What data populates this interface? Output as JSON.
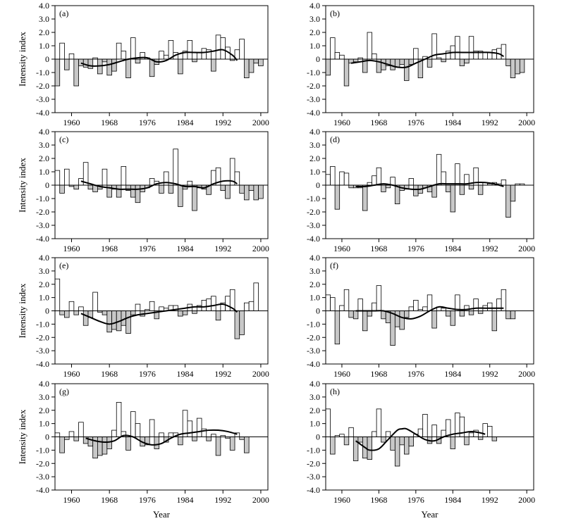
{
  "figure": {
    "xlabel": "Year",
    "ylabel": "Intensity index"
  },
  "colors": {
    "positive_bar": "#ffffff",
    "negative_bar": "#c8c8c8",
    "stroke": "#000000",
    "trend": "#000000"
  },
  "chart_data": [
    {
      "type": "bar",
      "panel_label": "(a)",
      "xlabel": "",
      "ylabel": "Intensity index",
      "x": [
        1957,
        1958,
        1959,
        1960,
        1961,
        1962,
        1963,
        1964,
        1965,
        1966,
        1967,
        1968,
        1969,
        1970,
        1971,
        1972,
        1973,
        1974,
        1975,
        1976,
        1977,
        1978,
        1979,
        1980,
        1981,
        1982,
        1983,
        1984,
        1985,
        1986,
        1987,
        1988,
        1989,
        1990,
        1991,
        1992,
        1993,
        1994,
        1995,
        1996,
        1997,
        1998,
        1999,
        2000,
        2001
      ],
      "values": [
        -2.0,
        1.2,
        -0.8,
        0.4,
        -2.0,
        -0.5,
        -0.6,
        -0.7,
        0.1,
        -1.1,
        -0.2,
        -1.2,
        -0.9,
        1.2,
        0.6,
        -1.4,
        1.6,
        -0.3,
        0.5,
        0.1,
        -1.3,
        -0.4,
        0.6,
        0.3,
        1.4,
        0.5,
        -1.1,
        0.6,
        1.4,
        -0.2,
        0.5,
        0.8,
        0.7,
        -0.9,
        1.8,
        1.6,
        0.9,
        -0.1,
        0.7,
        1.5,
        -1.4,
        -1.0,
        -0.3,
        -0.5,
        0
      ],
      "trend_x": [
        1962,
        1964,
        1966,
        1968,
        1970,
        1972,
        1974,
        1976,
        1978,
        1980,
        1982,
        1984,
        1986,
        1988,
        1990,
        1992,
        1994,
        1995
      ],
      "trend_y": [
        -0.3,
        -0.5,
        -0.5,
        -0.4,
        -0.2,
        0.0,
        0.1,
        0.1,
        -0.2,
        -0.1,
        0.3,
        0.5,
        0.5,
        0.5,
        0.6,
        0.7,
        0.3,
        -0.1
      ],
      "ylim": [
        -4.0,
        4.0
      ],
      "xlim": [
        1956.5,
        2001.5
      ],
      "yticks": [
        "4.0",
        "3.0",
        "2.0",
        "1.0",
        "0",
        "-1.0",
        "-2.0",
        "-3.0",
        "-4.0"
      ],
      "xticks": [
        "1960",
        "1968",
        "1976",
        "1984",
        "1992",
        "2000"
      ]
    },
    {
      "type": "bar",
      "panel_label": "(b)",
      "xlabel": "",
      "ylabel": "",
      "x": [
        1957,
        1958,
        1959,
        1960,
        1961,
        1962,
        1963,
        1964,
        1965,
        1966,
        1967,
        1968,
        1969,
        1970,
        1971,
        1972,
        1973,
        1974,
        1975,
        1976,
        1977,
        1978,
        1979,
        1980,
        1981,
        1982,
        1983,
        1984,
        1985,
        1986,
        1987,
        1988,
        1989,
        1990,
        1991,
        1992,
        1993,
        1994,
        1995,
        1996,
        1997,
        1998,
        1999,
        2000,
        2001
      ],
      "values": [
        -1.2,
        1.6,
        0.5,
        0.3,
        -2.0,
        -0.3,
        -0.2,
        0.1,
        -1.0,
        2.0,
        0.4,
        -1.0,
        -0.8,
        -0.5,
        -0.8,
        -0.6,
        -0.4,
        -1.6,
        -0.4,
        0.8,
        -1.4,
        0.2,
        -0.6,
        1.9,
        0.1,
        -0.2,
        0.6,
        1.0,
        1.7,
        -0.5,
        -0.3,
        1.7,
        0.6,
        0.6,
        0.5,
        0.5,
        0.7,
        0.8,
        1.1,
        -0.5,
        -1.4,
        -1.1,
        -1.0,
        0,
        0
      ],
      "trend_x": [
        1962,
        1964,
        1966,
        1968,
        1970,
        1972,
        1974,
        1976,
        1978,
        1980,
        1982,
        1984,
        1986,
        1988,
        1990,
        1992,
        1994,
        1995
      ],
      "trend_y": [
        -0.3,
        -0.2,
        -0.1,
        -0.2,
        -0.4,
        -0.6,
        -0.6,
        -0.3,
        0.0,
        0.3,
        0.4,
        0.5,
        0.5,
        0.5,
        0.5,
        0.5,
        0.4,
        0.2
      ],
      "ylim": [
        -4.0,
        4.0
      ],
      "xlim": [
        1956.5,
        2001.5
      ],
      "yticks": [
        "4.0",
        "3.0",
        "2.0",
        "1.0",
        "0",
        "-1.0",
        "-2.0",
        "-3.0",
        "-4.0"
      ],
      "xticks": [
        "1960",
        "1968",
        "1976",
        "1984",
        "1992",
        "2000"
      ]
    },
    {
      "type": "bar",
      "panel_label": "(c)",
      "xlabel": "",
      "ylabel": "Intensity index",
      "x": [
        1957,
        1958,
        1959,
        1960,
        1961,
        1962,
        1963,
        1964,
        1965,
        1966,
        1967,
        1968,
        1969,
        1970,
        1971,
        1972,
        1973,
        1974,
        1975,
        1976,
        1977,
        1978,
        1979,
        1980,
        1981,
        1982,
        1983,
        1984,
        1985,
        1986,
        1987,
        1988,
        1989,
        1990,
        1991,
        1992,
        1993,
        1994,
        1995,
        1996,
        1997,
        1998,
        1999,
        2000,
        2001
      ],
      "values": [
        1.1,
        -0.6,
        1.2,
        -0.1,
        -0.3,
        0.5,
        1.7,
        -0.3,
        -0.5,
        -0.3,
        1.2,
        -0.9,
        -0.3,
        -0.9,
        1.4,
        -0.4,
        -0.9,
        -1.3,
        -0.5,
        -0.2,
        0.5,
        0.3,
        -0.6,
        1.0,
        -0.6,
        2.7,
        -1.6,
        -0.3,
        0.3,
        -1.9,
        -0.2,
        -0.3,
        -0.7,
        1.1,
        1.3,
        -0.4,
        -1.0,
        2.0,
        1.0,
        -0.6,
        -1.1,
        -0.4,
        -1.1,
        -1.0,
        0
      ],
      "trend_x": [
        1962,
        1964,
        1966,
        1968,
        1970,
        1972,
        1974,
        1976,
        1978,
        1980,
        1982,
        1984,
        1986,
        1988,
        1990,
        1992,
        1994,
        1995
      ],
      "trend_y": [
        0.3,
        0.1,
        -0.1,
        -0.2,
        -0.3,
        -0.3,
        -0.3,
        -0.2,
        0.1,
        0.2,
        0.1,
        -0.1,
        -0.1,
        -0.2,
        0.1,
        0.3,
        0.3,
        0.1
      ],
      "ylim": [
        -4.0,
        4.0
      ],
      "xlim": [
        1956.5,
        2001.5
      ],
      "yticks": [
        "4.0",
        "3.0",
        "2.0",
        "1.0",
        "0",
        "-1.0",
        "-2.0",
        "-3.0",
        "-4.0"
      ],
      "xticks": [
        "1960",
        "1968",
        "1976",
        "1984",
        "1992",
        "2000"
      ]
    },
    {
      "type": "bar",
      "panel_label": "(d)",
      "xlabel": "",
      "ylabel": "",
      "x": [
        1957,
        1958,
        1959,
        1960,
        1961,
        1962,
        1963,
        1964,
        1965,
        1966,
        1967,
        1968,
        1969,
        1970,
        1971,
        1972,
        1973,
        1974,
        1975,
        1976,
        1977,
        1978,
        1979,
        1980,
        1981,
        1982,
        1983,
        1984,
        1985,
        1986,
        1987,
        1988,
        1989,
        1990,
        1991,
        1992,
        1993,
        1994,
        1995,
        1996,
        1997,
        1998,
        1999,
        2000,
        2001
      ],
      "values": [
        0.8,
        1.4,
        -1.8,
        1.0,
        0.9,
        -0.2,
        -0.2,
        -0.2,
        -1.9,
        0.2,
        0.7,
        1.3,
        -0.5,
        -0.2,
        0.6,
        -1.4,
        -0.4,
        -0.3,
        0.5,
        -0.8,
        -0.6,
        -0.2,
        -0.5,
        -0.9,
        2.3,
        1.0,
        -0.5,
        -2.0,
        1.6,
        -0.7,
        0.8,
        -0.3,
        1.3,
        -0.7,
        0.2,
        0.1,
        0.2,
        0.1,
        0.4,
        -2.4,
        -1.2,
        0.1,
        0.1,
        0,
        0
      ],
      "trend_x": [
        1963,
        1965,
        1967,
        1969,
        1971,
        1973,
        1975,
        1977,
        1979,
        1981,
        1983,
        1985,
        1987,
        1989,
        1991,
        1993,
        1995
      ],
      "trend_y": [
        -0.1,
        -0.1,
        0.0,
        0.1,
        0.0,
        -0.2,
        -0.3,
        -0.3,
        -0.1,
        0.1,
        0.1,
        0.1,
        0.1,
        0.2,
        0.2,
        0.1,
        -0.1
      ],
      "ylim": [
        -4.0,
        4.0
      ],
      "xlim": [
        1956.5,
        2001.5
      ],
      "yticks": [
        "4.0",
        "3.0",
        "2.0",
        "1.0",
        "0",
        "-1.0",
        "-2.0",
        "-3.0",
        "-4.0"
      ],
      "xticks": [
        "1960",
        "1968",
        "1976",
        "1984",
        "1992",
        "2000"
      ]
    },
    {
      "type": "bar",
      "panel_label": "(e)",
      "xlabel": "",
      "ylabel": "Intensity index",
      "x": [
        1957,
        1958,
        1959,
        1960,
        1961,
        1962,
        1963,
        1964,
        1965,
        1966,
        1967,
        1968,
        1969,
        1970,
        1971,
        1972,
        1973,
        1974,
        1975,
        1976,
        1977,
        1978,
        1979,
        1980,
        1981,
        1982,
        1983,
        1984,
        1985,
        1986,
        1987,
        1988,
        1989,
        1990,
        1991,
        1992,
        1993,
        1994,
        1995,
        1996,
        1997,
        1998,
        1999,
        2000,
        2001
      ],
      "values": [
        2.4,
        -0.3,
        -0.5,
        0.7,
        -0.3,
        0.3,
        -1.1,
        -0.5,
        1.4,
        -0.1,
        -0.3,
        -1.6,
        -1.4,
        -1.5,
        -1.1,
        -1.7,
        -0.3,
        0.5,
        -0.4,
        0.1,
        0.7,
        -0.6,
        0.3,
        0.2,
        0.4,
        0.4,
        -0.4,
        -0.3,
        0.5,
        -0.2,
        0.4,
        0.8,
        0.9,
        1.1,
        -0.7,
        0.6,
        1.1,
        1.6,
        -2.1,
        -1.8,
        0.6,
        0.7,
        2.1,
        0,
        0
      ],
      "trend_x": [
        1962,
        1964,
        1966,
        1968,
        1970,
        1972,
        1974,
        1976,
        1978,
        1980,
        1982,
        1984,
        1986,
        1988,
        1990,
        1992,
        1994,
        1995
      ],
      "trend_y": [
        -0.2,
        -0.5,
        -0.8,
        -1.0,
        -0.8,
        -0.5,
        -0.3,
        -0.2,
        -0.1,
        0.0,
        0.1,
        0.2,
        0.3,
        0.3,
        0.4,
        0.5,
        0.2,
        -0.1
      ],
      "ylim": [
        -4.0,
        4.0
      ],
      "xlim": [
        1956.5,
        2001.5
      ],
      "yticks": [
        "4.0",
        "3.0",
        "2.0",
        "1.0",
        "0",
        "-1.0",
        "-2.0",
        "-3.0",
        "-4.0"
      ],
      "xticks": [
        "1960",
        "1968",
        "1976",
        "1984",
        "1992",
        "2000"
      ]
    },
    {
      "type": "bar",
      "panel_label": "(f)",
      "xlabel": "",
      "ylabel": "",
      "x": [
        1957,
        1958,
        1959,
        1960,
        1961,
        1962,
        1963,
        1964,
        1965,
        1966,
        1967,
        1968,
        1969,
        1970,
        1971,
        1972,
        1973,
        1974,
        1975,
        1976,
        1977,
        1978,
        1979,
        1980,
        1981,
        1982,
        1983,
        1984,
        1985,
        1986,
        1987,
        1988,
        1989,
        1990,
        1991,
        1992,
        1993,
        1994,
        1995,
        1996,
        1997,
        1998,
        1999,
        2000,
        2001
      ],
      "values": [
        1.2,
        1.0,
        -2.5,
        0.4,
        1.6,
        -0.5,
        -0.6,
        0.9,
        -1.5,
        -0.4,
        0.6,
        1.9,
        -0.6,
        -0.9,
        -2.6,
        -1.2,
        -1.4,
        -0.5,
        0.3,
        0.8,
        0.1,
        0.3,
        1.2,
        -1.3,
        0.3,
        0.2,
        -0.4,
        -1.1,
        1.2,
        -0.4,
        0.4,
        -0.3,
        0.9,
        -0.2,
        0.4,
        0.6,
        -1.5,
        0.9,
        1.6,
        -0.6,
        -0.6,
        0,
        0,
        0,
        0
      ],
      "trend_x": [
        1963,
        1965,
        1967,
        1969,
        1971,
        1973,
        1975,
        1977,
        1979,
        1981,
        1983,
        1985,
        1987,
        1989,
        1991,
        1993,
        1995
      ],
      "trend_y": [
        0.0,
        0.0,
        0.0,
        0.0,
        -0.2,
        -0.5,
        -0.6,
        -0.4,
        0.0,
        0.3,
        0.2,
        0.1,
        0.1,
        0.2,
        0.2,
        0.2,
        0.2
      ],
      "ylim": [
        -4.0,
        4.0
      ],
      "xlim": [
        1956.5,
        2001.5
      ],
      "yticks": [
        "4.0",
        "3.0",
        "2.0",
        "1.0",
        "0",
        "-1.0",
        "-2.0",
        "-3.0",
        "-4.0"
      ],
      "xticks": [
        "1960",
        "1968",
        "1976",
        "1984",
        "1992",
        "2000"
      ]
    },
    {
      "type": "bar",
      "panel_label": "(g)",
      "xlabel": "",
      "ylabel": "Intensity index",
      "x": [
        1957,
        1958,
        1959,
        1960,
        1961,
        1962,
        1963,
        1964,
        1965,
        1966,
        1967,
        1968,
        1969,
        1970,
        1971,
        1972,
        1973,
        1974,
        1975,
        1976,
        1977,
        1978,
        1979,
        1980,
        1981,
        1982,
        1983,
        1984,
        1985,
        1986,
        1987,
        1988,
        1989,
        1990,
        1991,
        1992,
        1993,
        1994,
        1995,
        1996,
        1997,
        1998,
        1999,
        2000,
        2001
      ],
      "values": [
        0.3,
        -1.2,
        -0.2,
        0.4,
        -0.3,
        1.1,
        -0.5,
        -0.7,
        -1.6,
        -1.4,
        -1.3,
        -0.9,
        0.5,
        2.6,
        0.4,
        -1.0,
        1.9,
        1.0,
        -0.7,
        -0.6,
        1.3,
        -0.9,
        0.3,
        -0.4,
        0.3,
        0.3,
        -0.6,
        2.0,
        1.2,
        -0.3,
        1.4,
        0.6,
        -0.3,
        0.2,
        -1.4,
        0.1,
        -0.1,
        -1.0,
        0.3,
        -0.2,
        -1.2,
        0,
        0,
        0,
        0
      ],
      "trend_x": [
        1963,
        1965,
        1967,
        1969,
        1971,
        1973,
        1975,
        1977,
        1979,
        1981,
        1983,
        1985,
        1987,
        1989,
        1991,
        1993,
        1995
      ],
      "trend_y": [
        -0.1,
        -0.3,
        -0.4,
        -0.3,
        0.1,
        0.0,
        -0.4,
        -0.6,
        -0.5,
        -0.1,
        0.2,
        0.3,
        0.4,
        0.5,
        0.5,
        0.4,
        0.2
      ],
      "ylim": [
        -4.0,
        4.0
      ],
      "xlim": [
        1956.5,
        2001.5
      ],
      "yticks": [
        "4.0",
        "3.0",
        "2.0",
        "1.0",
        "0",
        "-1.0",
        "-2.0",
        "-3.0",
        "-4.0"
      ],
      "xticks": [
        "1960",
        "1968",
        "1976",
        "1984",
        "1992",
        "2000"
      ]
    },
    {
      "type": "bar",
      "panel_label": "(h)",
      "xlabel": "",
      "ylabel": "",
      "x": [
        1957,
        1958,
        1959,
        1960,
        1961,
        1962,
        1963,
        1964,
        1965,
        1966,
        1967,
        1968,
        1969,
        1970,
        1971,
        1972,
        1973,
        1974,
        1975,
        1976,
        1977,
        1978,
        1979,
        1980,
        1981,
        1982,
        1983,
        1984,
        1985,
        1986,
        1987,
        1988,
        1989,
        1990,
        1991,
        1992,
        1993,
        1994,
        1995,
        1996,
        1997,
        1998,
        1999,
        2000,
        2001
      ],
      "values": [
        2.1,
        -1.3,
        0.1,
        0.2,
        -0.6,
        0.7,
        -1.8,
        -0.4,
        -1.6,
        -1.7,
        0.4,
        2.1,
        -0.4,
        0.4,
        -1.0,
        -2.2,
        -0.6,
        -1.3,
        -0.7,
        0.2,
        0.6,
        1.7,
        -0.5,
        0.9,
        -0.5,
        0.5,
        1.3,
        -0.9,
        1.8,
        1.5,
        -0.6,
        0.3,
        0.5,
        -0.2,
        1.0,
        0.8,
        -0.3,
        0,
        0,
        0,
        0,
        0,
        0,
        0,
        0
      ],
      "trend_x": [
        1963,
        1965,
        1966,
        1968,
        1970,
        1972,
        1973,
        1974,
        1976,
        1978,
        1980,
        1982,
        1984,
        1986,
        1988,
        1990,
        1991
      ],
      "trend_y": [
        -0.3,
        -0.8,
        -1.0,
        -0.9,
        -0.2,
        0.5,
        0.6,
        0.6,
        0.2,
        -0.2,
        -0.3,
        0.0,
        0.2,
        0.3,
        0.4,
        0.3,
        0.2
      ],
      "ylim": [
        -4.0,
        4.0
      ],
      "xlim": [
        1956.5,
        2001.5
      ],
      "yticks": [
        "4.0",
        "3.0",
        "2.0",
        "1.0",
        "0",
        "-1.0",
        "-2.0",
        "-3.0",
        "-4.0"
      ],
      "xticks": [
        "1960",
        "1968",
        "1976",
        "1984",
        "1992",
        "2000"
      ]
    }
  ]
}
